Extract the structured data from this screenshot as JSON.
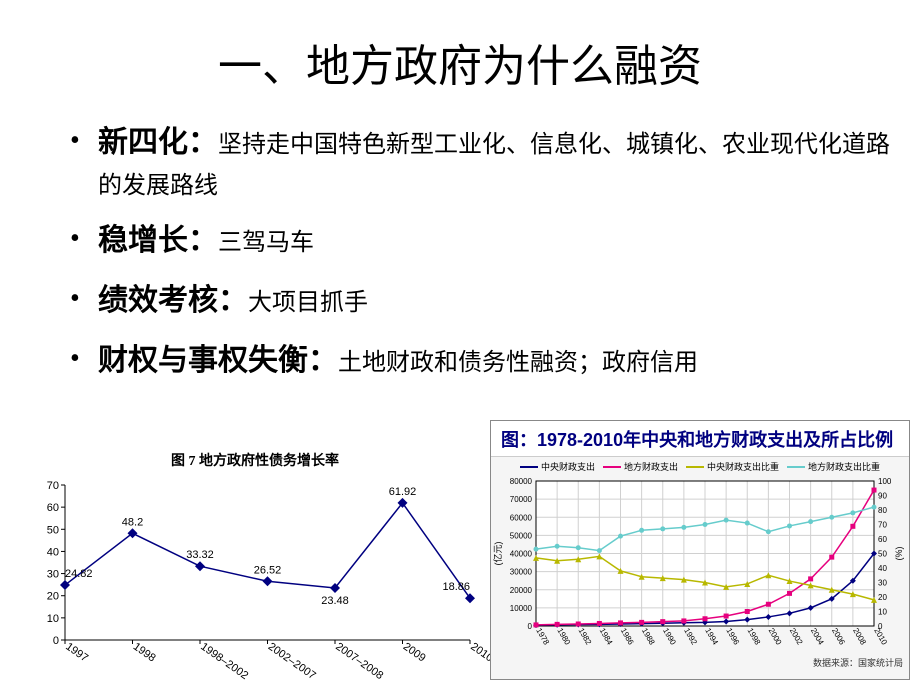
{
  "title": "一、地方政府为什么融资",
  "bullets": [
    {
      "label": "新四化：",
      "desc": "坚持走中国特色新型工业化、信息化、城镇化、农业现代化道路的发展路线"
    },
    {
      "label": "稳增长：",
      "desc": "三驾马车"
    },
    {
      "label": "绩效考核：",
      "desc": "大项目抓手"
    },
    {
      "label": "财权与事权失衡：",
      "desc": "土地财政和债务性融资；政府信用"
    }
  ],
  "chart_left": {
    "type": "line",
    "title": "图 7 地方政府性债务增长率",
    "x_labels": [
      "1997",
      "1998",
      "1998–2002",
      "2002–2007",
      "2007–2008",
      "2009",
      "2010"
    ],
    "values": [
      24.82,
      48.2,
      33.32,
      26.52,
      23.48,
      61.92,
      18.86
    ],
    "point_labels": [
      "24.82",
      "48.2",
      "33.32",
      "26.52",
      "23.48",
      "61.92",
      "18.86"
    ],
    "ylim": [
      0,
      70
    ],
    "ytick_step": 10,
    "line_color": "#000080",
    "marker": "diamond",
    "marker_color": "#000080",
    "background_color": "#ffffff",
    "text_color": "#000000",
    "axis_fontsize": 11,
    "label_fontsize": 11
  },
  "chart_right": {
    "type": "line",
    "title": "图：1978-2010年中央和地方财政支出及所占比例",
    "legend": [
      "中央财政支出",
      "地方财政支出",
      "中央财政支出比重",
      "地方财政支出比重"
    ],
    "series_colors": [
      "#000080",
      "#e6007e",
      "#b8b800",
      "#66cccc"
    ],
    "years": [
      1978,
      1980,
      1982,
      1984,
      1986,
      1988,
      1990,
      1992,
      1994,
      1996,
      1998,
      2000,
      2002,
      2004,
      2006,
      2008,
      2010
    ],
    "central_spend": [
      500,
      700,
      800,
      900,
      1100,
      1300,
      1500,
      1800,
      2000,
      2500,
      3500,
      5000,
      7000,
      10000,
      15000,
      25000,
      40000
    ],
    "local_spend": [
      600,
      900,
      1100,
      1400,
      1700,
      2000,
      2400,
      2800,
      4000,
      5500,
      8000,
      12000,
      18000,
      26000,
      38000,
      55000,
      75000
    ],
    "central_ratio": [
      47,
      45,
      46,
      48,
      38,
      34,
      33,
      32,
      30,
      27,
      29,
      35,
      31,
      28,
      25,
      22,
      18
    ],
    "local_ratio": [
      53,
      55,
      54,
      52,
      62,
      66,
      67,
      68,
      70,
      73,
      71,
      65,
      69,
      72,
      75,
      78,
      82
    ],
    "ylim_left": [
      0,
      80000
    ],
    "ytick_left": [
      0,
      10000,
      20000,
      30000,
      40000,
      50000,
      60000,
      70000,
      80000
    ],
    "ylabel_left": "(亿元)",
    "ylim_right": [
      0,
      100
    ],
    "ytick_right": [
      0,
      10,
      20,
      30,
      40,
      50,
      60,
      70,
      80,
      90,
      100
    ],
    "ylabel_right": "(%)",
    "grid_color": "#d0d0d0",
    "background_color": "#ffffff",
    "source": "数据来源：国家统计局",
    "axis_fontsize": 8
  }
}
